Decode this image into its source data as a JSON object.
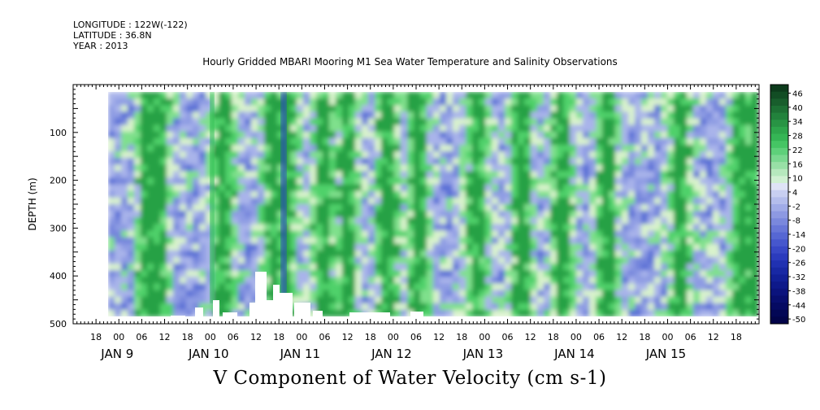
{
  "header": {
    "longitude": "LONGITUDE : 122W(-122)",
    "latitude": "LATITUDE : 36.8N",
    "year": "YEAR : 2013"
  },
  "chart_title": "Hourly Gridded MBARI Mooring M1 Sea Water Temperature and Salinity Observations",
  "variable_title": "V Component of Water Velocity (cm s-1)",
  "chart_data": {
    "type": "heatmap",
    "title": "Hourly Gridded MBARI Mooring M1 Sea Water Temperature and Salinity Observations",
    "xlabel": "",
    "ylabel": "DEPTH (m)",
    "x_range_hours": [
      "JAN 8 12:00",
      "JAN 15 24:00"
    ],
    "ylim": [
      500,
      0
    ],
    "y_axis_inverted": true,
    "y_ticks": [
      100,
      200,
      300,
      400,
      500
    ],
    "x_hour_ticks": [
      "18",
      "00",
      "06",
      "12",
      "18",
      "00",
      "06",
      "12",
      "18",
      "00",
      "06",
      "12",
      "18",
      "00",
      "06",
      "12",
      "18",
      "00",
      "06",
      "12",
      "18",
      "00",
      "06",
      "12",
      "18",
      "00",
      "06",
      "12",
      "18"
    ],
    "x_day_labels": [
      "JAN  9",
      "JAN 10",
      "JAN 11",
      "JAN 12",
      "JAN 13",
      "JAN 14",
      "JAN 15"
    ],
    "colorbar": {
      "labels": [
        "46",
        "40",
        "34",
        "28",
        "22",
        "16",
        "10",
        "4",
        "-2",
        "-8",
        "-14",
        "-20",
        "-26",
        "-32",
        "-38",
        "-44",
        "-50"
      ],
      "range": [
        -50,
        52
      ],
      "colors_pos": [
        "#1a4d2e",
        "#1f7a3a",
        "#26a145",
        "#2fbf52",
        "#4fd16a",
        "#7fe08c",
        "#b3ecae",
        "#d9f3cc"
      ],
      "colors_neg": [
        "#c6cdf0",
        "#a9b4ea",
        "#8e9ce3",
        "#7485dc",
        "#5a6fd6",
        "#4058cf",
        "#2a44c4",
        "#1c32a8",
        "#10208a",
        "#0a146b"
      ]
    },
    "data_extent_depth_m": [
      15,
      485
    ],
    "green_bands_time": [
      "JAN 10 18:00",
      "JAN 11 00:00",
      "JAN 12 00:00",
      "JAN 13 06:00",
      "JAN 13 18:00",
      "JAN 14 06:00",
      "JAN 15 06:00",
      "JAN 15 18:00"
    ]
  }
}
